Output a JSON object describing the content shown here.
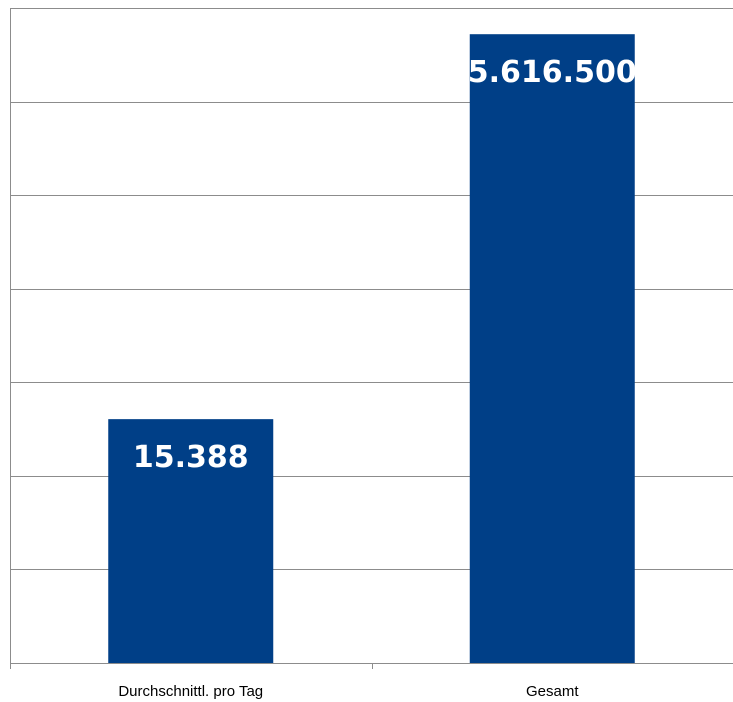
{
  "chart_data": {
    "type": "bar",
    "title": "",
    "xlabel": "",
    "ylabel": "",
    "categories": [
      "Durchschnittl. pro Tag",
      "Gesamt"
    ],
    "series": [
      {
        "values": [
          15388,
          5616500
        ],
        "value_labels": [
          "15.388",
          "5.616.500"
        ],
        "color": "#003F87"
      }
    ],
    "grid": true,
    "legend": "none",
    "y_axis_labels_visible": false
  }
}
